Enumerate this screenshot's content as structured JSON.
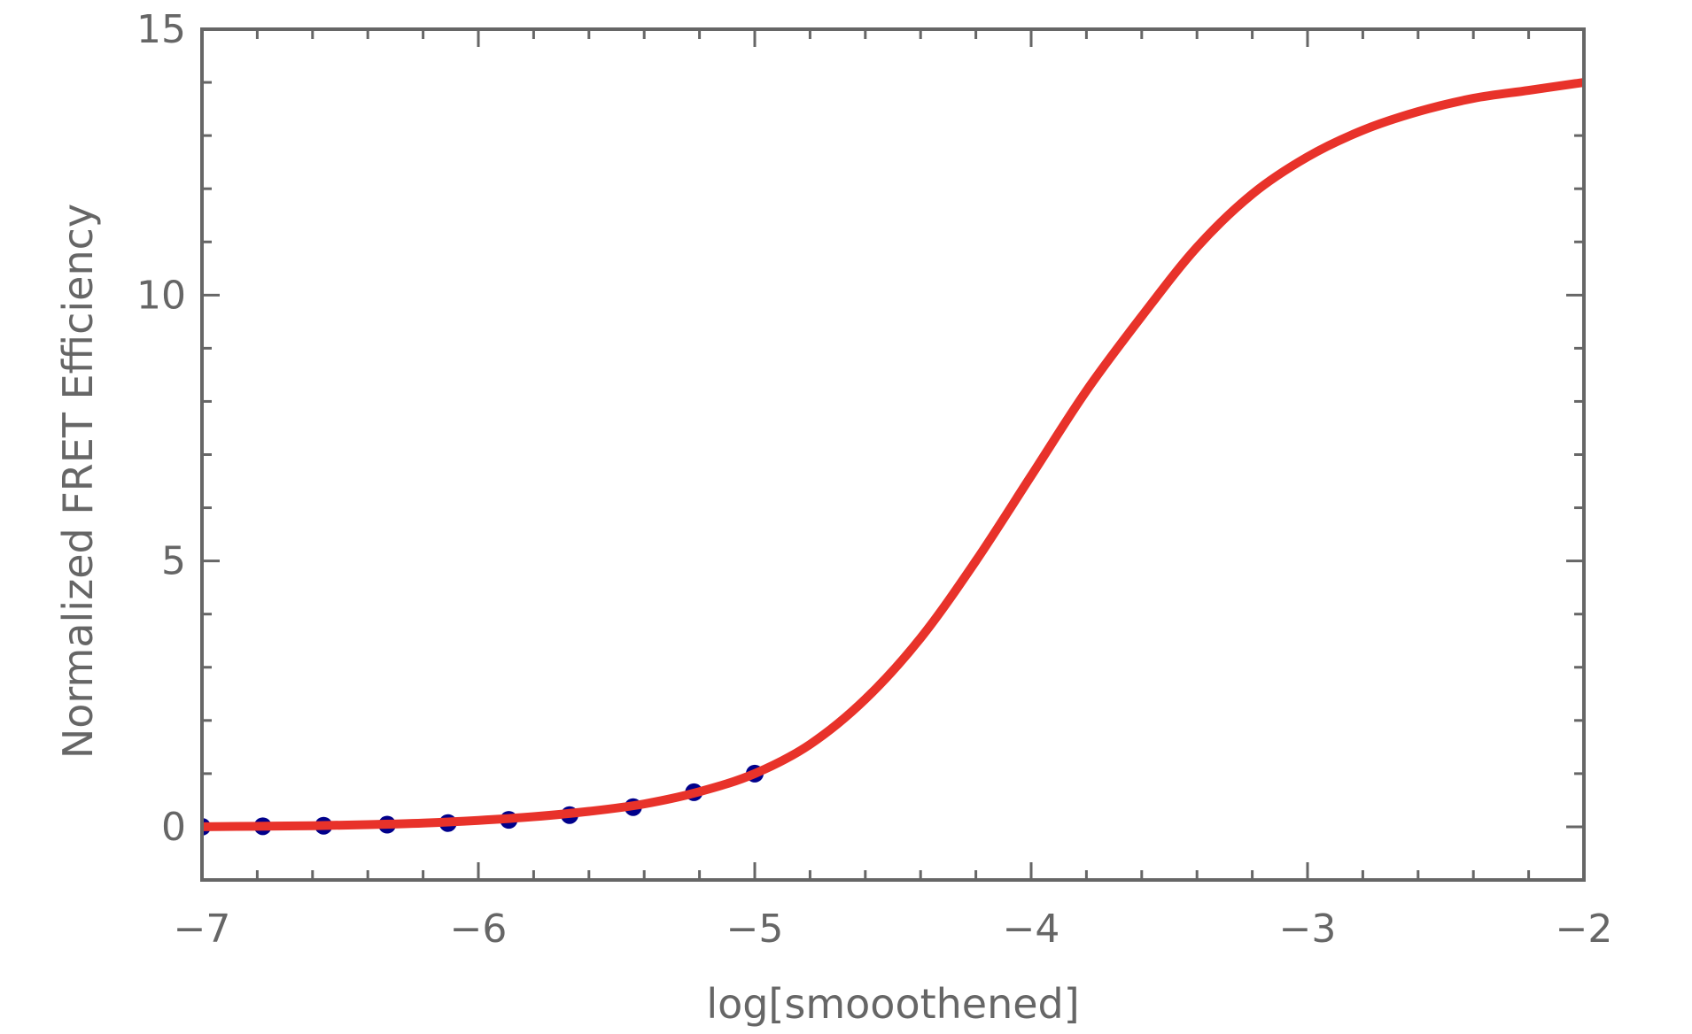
{
  "chart_data": {
    "type": "line",
    "title": "",
    "xlabel": "log[smooothened]",
    "ylabel": "Normalized FRET Efficiency",
    "xlim": [
      -7,
      -2
    ],
    "ylim": [
      -1,
      15
    ],
    "x_ticks": [
      -7,
      -6,
      -5,
      -4,
      -3,
      -2
    ],
    "x_tick_labels": [
      "−7",
      "−6",
      "−5",
      "−4",
      "−3",
      "−2"
    ],
    "y_ticks": [
      0,
      5,
      10,
      15
    ],
    "y_tick_labels": [
      "0",
      "5",
      "10",
      "15"
    ],
    "grid": false,
    "legend": "none",
    "series": [
      {
        "kind": "scatter",
        "color": "#00008b",
        "x": [
          -7.0,
          -6.78,
          -6.56,
          -6.33,
          -6.11,
          -5.89,
          -5.67,
          -5.44,
          -5.22,
          -5.0
        ],
        "y": [
          0.0,
          0.01,
          0.02,
          0.04,
          0.07,
          0.13,
          0.22,
          0.37,
          0.65,
          1.0
        ]
      },
      {
        "kind": "line",
        "color": "#e8322a",
        "x": [
          -7.0,
          -6.8,
          -6.6,
          -6.4,
          -6.2,
          -6.0,
          -5.8,
          -5.6,
          -5.4,
          -5.2,
          -5.0,
          -4.8,
          -4.6,
          -4.4,
          -4.2,
          -4.0,
          -3.8,
          -3.6,
          -3.4,
          -3.2,
          -3.0,
          -2.8,
          -2.6,
          -2.4,
          -2.2,
          -2.0
        ],
        "y": [
          0.0,
          0.01,
          0.02,
          0.04,
          0.07,
          0.12,
          0.19,
          0.29,
          0.43,
          0.66,
          1.0,
          1.55,
          2.4,
          3.55,
          5.0,
          6.6,
          8.2,
          9.6,
          10.9,
          11.9,
          12.6,
          13.1,
          13.45,
          13.7,
          13.85,
          14.0
        ]
      }
    ]
  }
}
